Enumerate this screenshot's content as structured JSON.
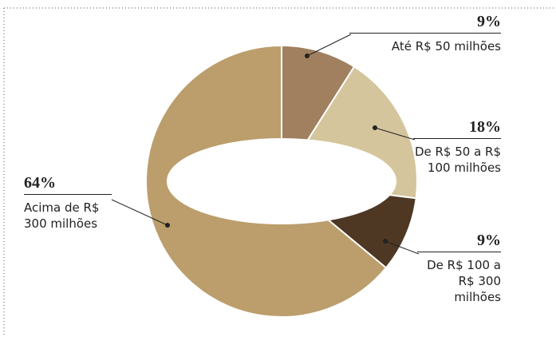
{
  "chart_data": {
    "type": "donut",
    "categories": [
      "Até R$ 50 milhões",
      "De R$ 50 a R$ 100 milhões",
      "De R$ 100 a R$ 300 milhões",
      "Acima de R$ 300 milhões"
    ],
    "values": [
      9,
      18,
      9,
      64
    ],
    "value_labels": [
      "9%",
      "18%",
      "9%",
      "64%"
    ],
    "colors": [
      "#a0805e",
      "#d4c59c",
      "#4e3824",
      "#bb9e6c"
    ]
  }
}
